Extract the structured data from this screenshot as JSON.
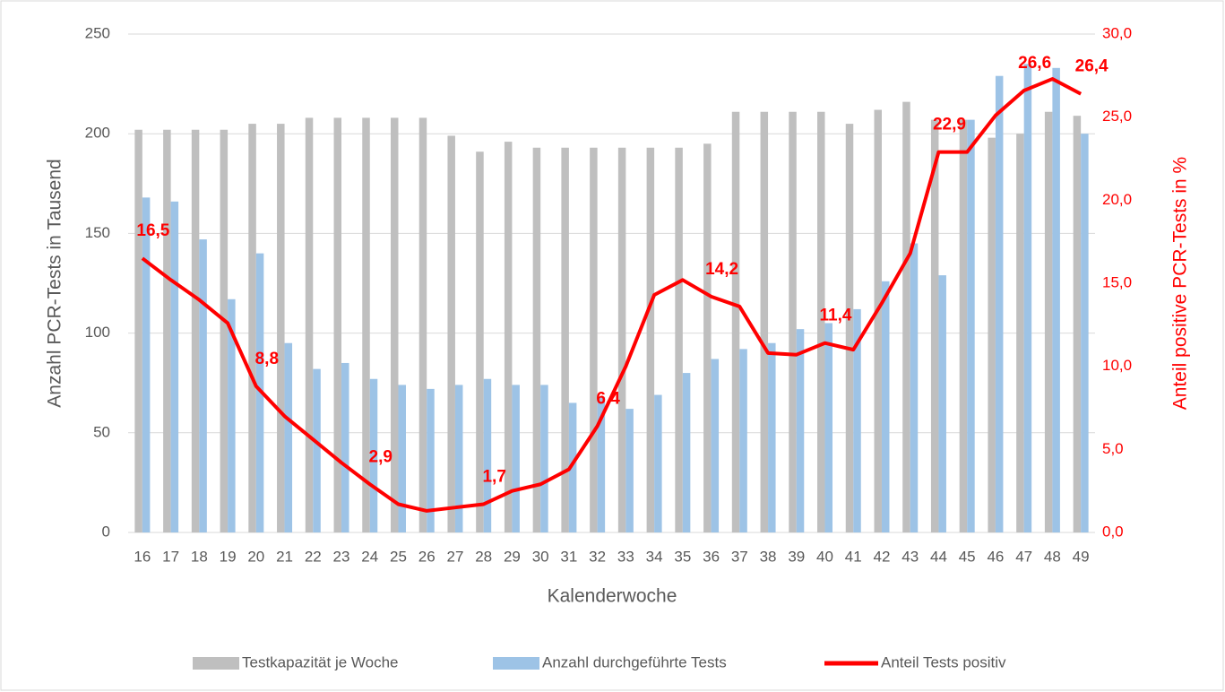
{
  "chart_data": {
    "type": "bar",
    "x_label": "Kalenderwoche",
    "y_label": "Anzahl PCR-Tests in Tausend",
    "y2_label": "Anteil positive PCR-Tests in %",
    "categories": [
      "16",
      "17",
      "18",
      "19",
      "20",
      "21",
      "22",
      "23",
      "24",
      "25",
      "26",
      "27",
      "28",
      "29",
      "30",
      "31",
      "32",
      "33",
      "34",
      "35",
      "36",
      "37",
      "38",
      "39",
      "40",
      "41",
      "42",
      "43",
      "44",
      "45",
      "46",
      "47",
      "48",
      "49"
    ],
    "series": [
      {
        "name": "Testkapazität je Woche",
        "type": "bar",
        "color": "#bfbfbf",
        "values": [
          202,
          202,
          202,
          202,
          205,
          205,
          208,
          208,
          208,
          208,
          208,
          199,
          191,
          196,
          193,
          193,
          193,
          193,
          193,
          193,
          195,
          211,
          211,
          211,
          211,
          205,
          212,
          216,
          207,
          207,
          198,
          200,
          211,
          209
        ]
      },
      {
        "name": "Anzahl durchgeführte Tests",
        "type": "bar",
        "color": "#9dc3e6",
        "values": [
          168,
          166,
          147,
          117,
          140,
          95,
          82,
          85,
          77,
          74,
          72,
          74,
          77,
          74,
          74,
          65,
          68,
          62,
          69,
          80,
          87,
          92,
          95,
          102,
          105,
          112,
          126,
          145,
          129,
          207,
          229,
          235,
          233,
          200
        ]
      },
      {
        "name": "Anteil Tests positiv",
        "type": "line",
        "axis": "y2",
        "color": "#ff0000",
        "values": [
          16.5,
          15.2,
          14.0,
          12.6,
          8.8,
          7.0,
          5.6,
          4.2,
          2.9,
          1.7,
          1.3,
          1.5,
          1.7,
          2.5,
          2.9,
          3.8,
          6.4,
          10.0,
          14.3,
          15.2,
          14.2,
          13.6,
          10.8,
          10.7,
          11.4,
          11.0,
          13.8,
          16.8,
          22.9,
          22.9,
          25.1,
          26.6,
          27.3,
          26.4
        ],
        "value_labels": [
          "16,5",
          null,
          null,
          null,
          "8,8",
          null,
          null,
          null,
          "2,9",
          null,
          null,
          null,
          "1,7",
          null,
          null,
          null,
          "6,4",
          null,
          null,
          null,
          "14,2",
          null,
          null,
          null,
          "11,4",
          null,
          null,
          null,
          "22,9",
          null,
          null,
          "26,6",
          null,
          "26,4"
        ]
      }
    ],
    "ylim": [
      0,
      250
    ],
    "yticks": [
      0,
      50,
      100,
      150,
      200,
      250
    ],
    "y2lim": [
      0,
      30
    ],
    "y2ticks": [
      {
        "value": 0,
        "label": "0,0"
      },
      {
        "value": 5,
        "label": "5,0"
      },
      {
        "value": 10,
        "label": "10,0"
      },
      {
        "value": 15,
        "label": "15,0"
      },
      {
        "value": 20,
        "label": "20,0"
      },
      {
        "value": 25,
        "label": "25,0"
      },
      {
        "value": 30,
        "label": "30,0"
      }
    ],
    "grid": true,
    "legend": "bottom"
  }
}
